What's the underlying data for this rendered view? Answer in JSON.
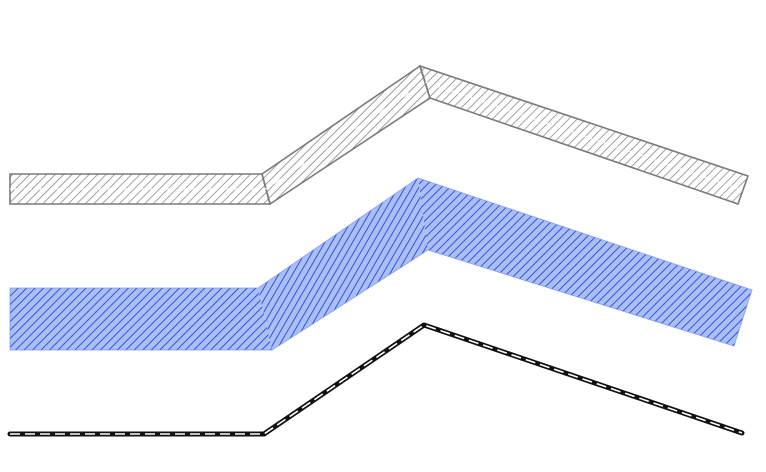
{
  "colors": {
    "background": "#ffffff",
    "gray_band_stroke": "#7a7a7a",
    "gray_band_hatch": "#7a7a7a",
    "blue_band_fill": "#a9c0f4",
    "blue_band_hatch": "#3a4fe0",
    "blue_band_stroke": "#5a78e8",
    "black_line": "#111111",
    "dash_color": "#ffffff"
  },
  "elements": [
    {
      "name": "gray-hatched-band",
      "style": "hatched-outline"
    },
    {
      "name": "blue-hatched-band",
      "style": "hatched-filled"
    },
    {
      "name": "black-dashed-line",
      "style": "line-with-white-dashes"
    }
  ]
}
